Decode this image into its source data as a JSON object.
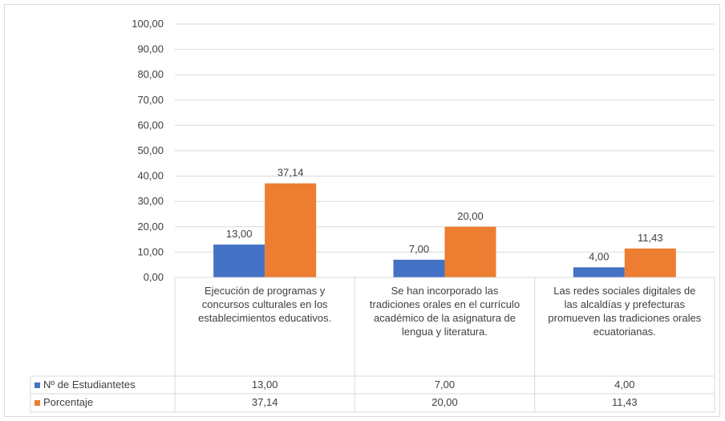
{
  "chart_data": {
    "type": "bar",
    "categories": [
      "Ejecución de programas y concursos culturales en los establecimientos educativos.",
      "Se han incorporado las tradiciones orales en el currículo académico de la asignatura de lengua y literatura.",
      "Las redes sociales digitales de las alcaldías y prefecturas promueven las tradiciones orales ecuatorianas."
    ],
    "series": [
      {
        "name": "Nº de Estudiantetes",
        "values": [
          13.0,
          7.0,
          4.0
        ],
        "labels": [
          "13,00",
          "7,00",
          "4,00"
        ],
        "color": "#4472c4"
      },
      {
        "name": "Porcentaje",
        "values": [
          37.14,
          20.0,
          11.43
        ],
        "labels": [
          "37,14",
          "20,00",
          "11,43"
        ],
        "color": "#ed7d31"
      }
    ],
    "yticks": [
      "0,00",
      "10,00",
      "20,00",
      "30,00",
      "40,00",
      "50,00",
      "60,00",
      "70,00",
      "80,00",
      "90,00",
      "100,00"
    ],
    "ylim": [
      0,
      100
    ],
    "grid": true,
    "legend": "data-table",
    "title": "",
    "xlabel": "",
    "ylabel": ""
  }
}
